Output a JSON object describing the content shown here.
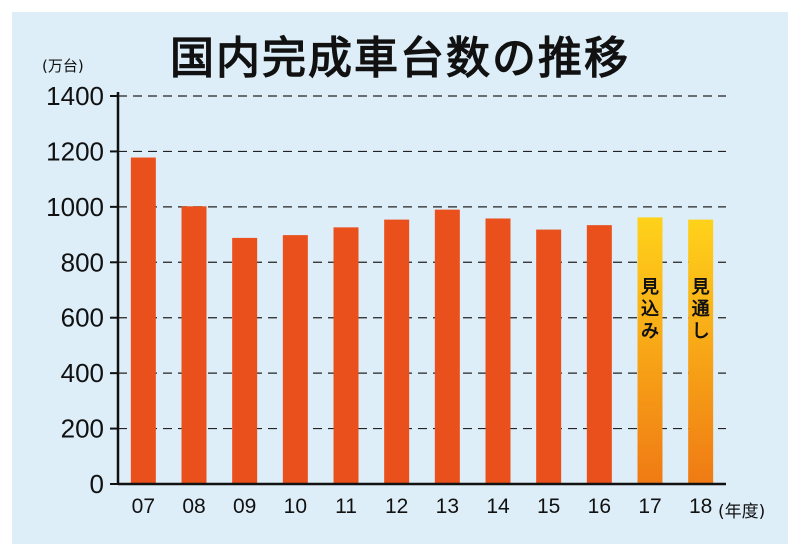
{
  "title": "国内完成車台数の推移",
  "chart_data": {
    "type": "bar",
    "title": "国内完成車台数の推移",
    "ylabel": "(万台)",
    "xlabel": "(年度)",
    "ylim": [
      0,
      1400
    ],
    "yticks": [
      0,
      200,
      400,
      600,
      800,
      1000,
      1200,
      1400
    ],
    "grid": true,
    "categories": [
      "07",
      "08",
      "09",
      "10",
      "11",
      "12",
      "13",
      "14",
      "15",
      "16",
      "17",
      "18"
    ],
    "values": [
      1178,
      1002,
      888,
      898,
      926,
      954,
      990,
      958,
      918,
      934,
      962,
      954
    ],
    "bar_notes": [
      "",
      "",
      "",
      "",
      "",
      "",
      "",
      "",
      "",
      "",
      "見込み",
      "見通し"
    ],
    "colors": {
      "actual": "#e9501c",
      "forecast_top": "#ffd21a",
      "forecast_bottom": "#f07a14",
      "background": "#ddeef9"
    }
  }
}
